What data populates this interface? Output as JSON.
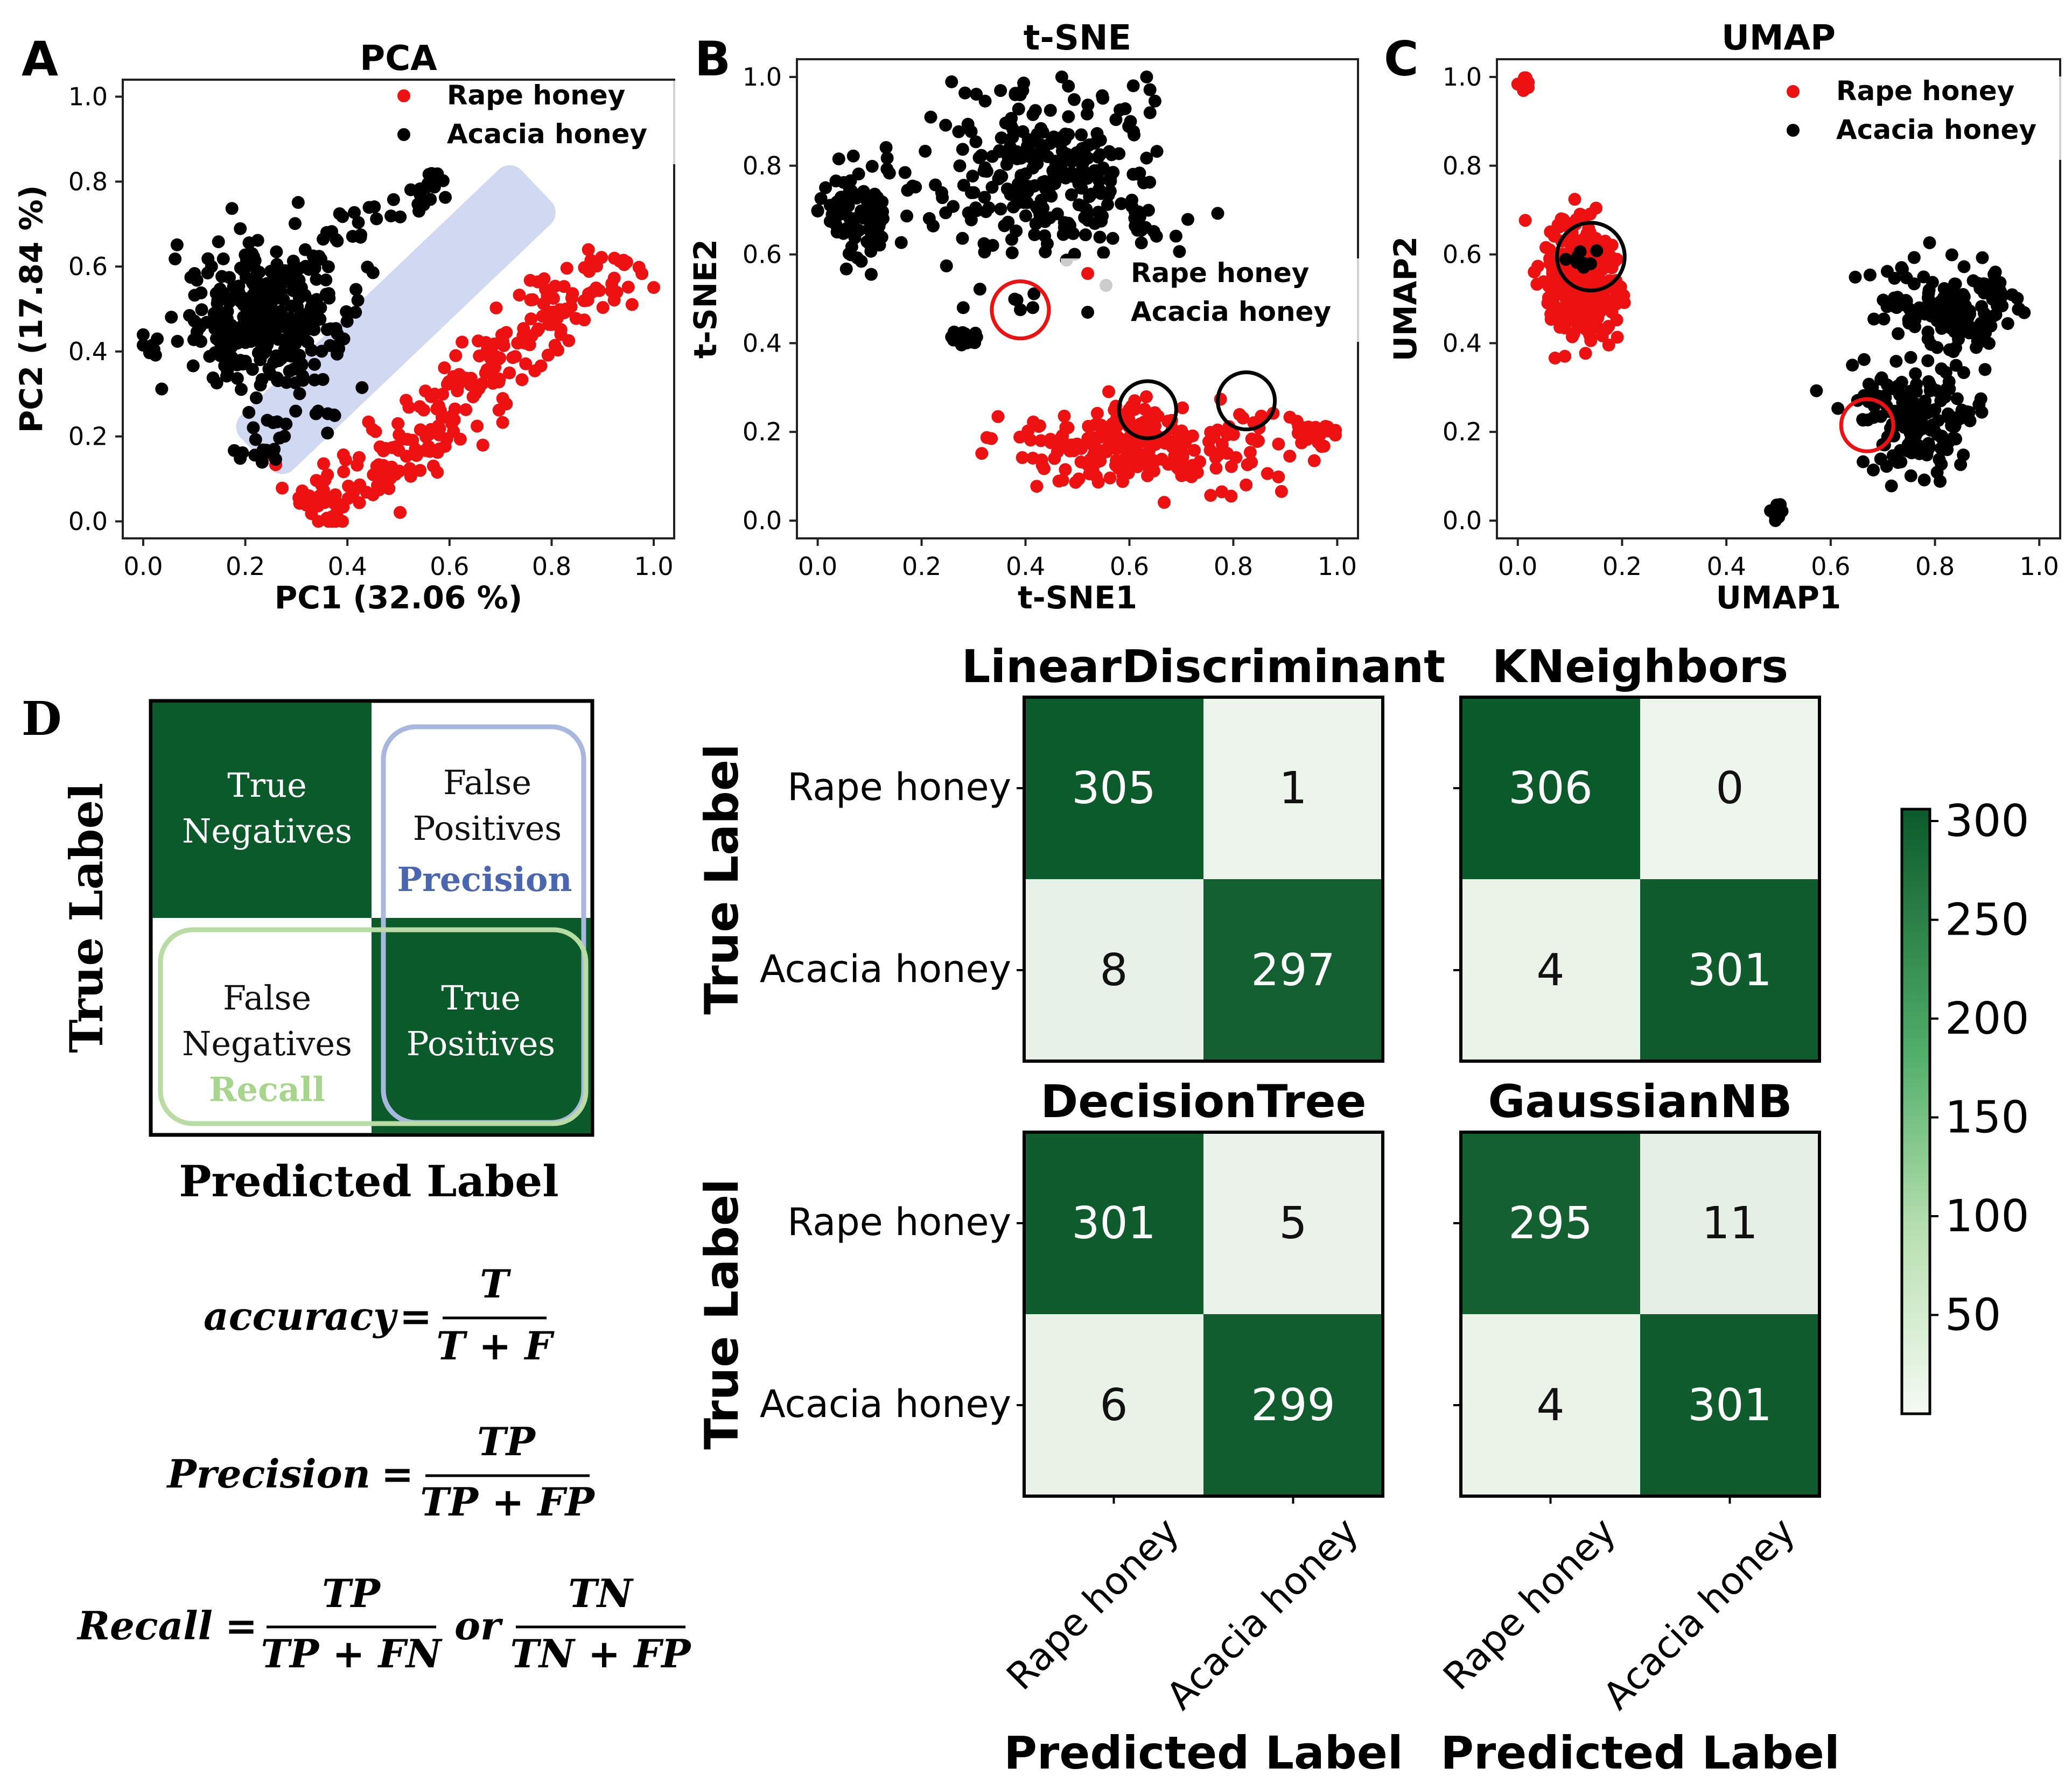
{
  "panel_letters": [
    "A",
    "B",
    "C",
    "D"
  ],
  "colors": {
    "rape": "#ee1111",
    "acacia": "#000000",
    "cm_dark": "#0b5a2a",
    "cm_light": "#eef5ec",
    "precision_box": "#a7b7dd",
    "recall_box": "#b9dca4",
    "precision_text": "#4a66b0",
    "recall_text": "#a6d68c",
    "band": "#c9d1ee"
  },
  "chart_data": [
    {
      "id": "pca",
      "type": "scatter",
      "title": "PCA",
      "xlabel": "PC1 (32.06 %)",
      "ylabel": "PC2 (17.84 %)",
      "xlim": [
        -0.04,
        1.04
      ],
      "ylim": [
        -0.04,
        1.04
      ],
      "xticks": [
        "0.0",
        "0.2",
        "0.4",
        "0.6",
        "0.8",
        "1.0"
      ],
      "yticks": [
        "0.0",
        "0.2",
        "0.4",
        "0.6",
        "0.8",
        "1.0"
      ],
      "legend": [
        "Rape honey",
        "Acacia honey"
      ],
      "legend_position": "top-right",
      "series": [
        {
          "name": "Rape honey",
          "clusters": [
            {
              "shape": "band",
              "x0": 0.32,
              "y0": 0.0,
              "x1": 0.95,
              "y1": 0.62,
              "width": 0.09,
              "n": 260,
              "seed": 11
            }
          ]
        },
        {
          "name": "Acacia honey",
          "clusters": [
            {
              "shape": "blob",
              "cx": 0.24,
              "cy": 0.47,
              "sx": 0.085,
              "sy": 0.085,
              "n": 330,
              "seed": 21
            },
            {
              "shape": "band",
              "x0": 0.25,
              "y0": 0.55,
              "x1": 0.6,
              "y1": 0.82,
              "width": 0.05,
              "n": 50,
              "seed": 22
            },
            {
              "shape": "band",
              "x0": 0.18,
              "y0": 0.15,
              "x1": 0.35,
              "y1": 0.3,
              "width": 0.05,
              "n": 25,
              "seed": 23
            }
          ]
        }
      ]
    },
    {
      "id": "tsne",
      "type": "scatter",
      "title": "t-SNE",
      "xlabel": "t-SNE1",
      "ylabel": "t-SNE2",
      "xlim": [
        -0.04,
        1.04
      ],
      "ylim": [
        -0.04,
        1.04
      ],
      "xticks": [
        "0.0",
        "0.2",
        "0.4",
        "0.6",
        "0.8",
        "1.0"
      ],
      "yticks": [
        "0.0",
        "0.2",
        "0.4",
        "0.6",
        "0.8",
        "1.0"
      ],
      "legend": [
        "Rape honey",
        "Acacia honey"
      ],
      "legend_position": "center-right",
      "series": [
        {
          "name": "Acacia honey",
          "clusters": [
            {
              "shape": "blob",
              "cx": 0.44,
              "cy": 0.77,
              "sx": 0.12,
              "sy": 0.1,
              "n": 280,
              "seed": 31
            },
            {
              "shape": "blob",
              "cx": 0.08,
              "cy": 0.7,
              "sx": 0.05,
              "sy": 0.06,
              "n": 80,
              "seed": 32
            },
            {
              "shape": "blob",
              "cx": 0.28,
              "cy": 0.41,
              "sx": 0.012,
              "sy": 0.008,
              "n": 25,
              "seed": 33
            },
            {
              "shape": "blob",
              "cx": 0.39,
              "cy": 0.48,
              "sx": 0.01,
              "sy": 0.01,
              "n": 4,
              "seed": 34
            }
          ]
        },
        {
          "name": "Rape honey",
          "clusters": [
            {
              "shape": "blob",
              "cx": 0.63,
              "cy": 0.17,
              "sx": 0.13,
              "sy": 0.045,
              "n": 250,
              "seed": 41
            },
            {
              "shape": "blob",
              "cx": 0.94,
              "cy": 0.2,
              "sx": 0.03,
              "sy": 0.012,
              "n": 25,
              "seed": 42
            }
          ]
        }
      ],
      "circles": [
        {
          "x": 0.39,
          "y": 0.475,
          "r": 0.055,
          "color": "red"
        },
        {
          "x": 0.635,
          "y": 0.25,
          "r": 0.055,
          "color": "black"
        },
        {
          "x": 0.825,
          "y": 0.27,
          "r": 0.055,
          "color": "black"
        }
      ]
    },
    {
      "id": "umap",
      "type": "scatter",
      "title": "UMAP",
      "xlabel": "UMAP1",
      "ylabel": "UMAP2",
      "xlim": [
        -0.04,
        1.04
      ],
      "ylim": [
        -0.04,
        1.04
      ],
      "xticks": [
        "0.0",
        "0.2",
        "0.4",
        "0.6",
        "0.8",
        "1.0"
      ],
      "yticks": [
        "0.0",
        "0.2",
        "0.4",
        "0.6",
        "0.8",
        "1.0"
      ],
      "legend": [
        "Rape honey",
        "Acacia honey"
      ],
      "legend_position": "top-right",
      "series": [
        {
          "name": "Rape honey",
          "clusters": [
            {
              "shape": "blob",
              "cx": 0.12,
              "cy": 0.54,
              "sx": 0.035,
              "sy": 0.07,
              "n": 300,
              "seed": 51
            },
            {
              "shape": "blob",
              "cx": 0.01,
              "cy": 0.985,
              "sx": 0.006,
              "sy": 0.008,
              "n": 15,
              "seed": 52
            }
          ]
        },
        {
          "name": "Acacia honey",
          "clusters": [
            {
              "shape": "blob",
              "cx": 0.83,
              "cy": 0.49,
              "sx": 0.07,
              "sy": 0.055,
              "n": 140,
              "seed": 61
            },
            {
              "shape": "blob",
              "cx": 0.76,
              "cy": 0.24,
              "sx": 0.06,
              "sy": 0.07,
              "n": 150,
              "seed": 62
            },
            {
              "shape": "blob",
              "cx": 0.495,
              "cy": 0.02,
              "sx": 0.005,
              "sy": 0.015,
              "n": 15,
              "seed": 63
            },
            {
              "shape": "blob",
              "cx": 0.13,
              "cy": 0.59,
              "sx": 0.015,
              "sy": 0.02,
              "n": 8,
              "seed": 64
            }
          ]
        }
      ],
      "circles": [
        {
          "x": 0.14,
          "y": 0.595,
          "r": 0.065,
          "color": "black"
        },
        {
          "x": 0.67,
          "y": 0.215,
          "r": 0.05,
          "color": "red"
        }
      ]
    },
    {
      "id": "linear-discriminant",
      "type": "heatmap",
      "title": "LinearDiscriminant",
      "row_labels": [
        "Rape honey",
        "Acacia honey"
      ],
      "col_labels": [
        "Rape honey",
        "Acacia honey"
      ],
      "values": [
        [
          305,
          1
        ],
        [
          8,
          297
        ]
      ]
    },
    {
      "id": "kneighbors",
      "type": "heatmap",
      "title": "KNeighbors",
      "row_labels": [
        "Rape honey",
        "Acacia honey"
      ],
      "col_labels": [
        "Rape honey",
        "Acacia honey"
      ],
      "values": [
        [
          306,
          0
        ],
        [
          4,
          301
        ]
      ]
    },
    {
      "id": "decision-tree",
      "type": "heatmap",
      "title": "DecisionTree",
      "row_labels": [
        "Rape honey",
        "Acacia honey"
      ],
      "col_labels": [
        "Rape honey",
        "Acacia honey"
      ],
      "values": [
        [
          301,
          5
        ],
        [
          6,
          299
        ]
      ]
    },
    {
      "id": "gaussian-nb",
      "type": "heatmap",
      "title": "GaussianNB",
      "row_labels": [
        "Rape honey",
        "Acacia honey"
      ],
      "col_labels": [
        "Rape honey",
        "Acacia honey"
      ],
      "values": [
        [
          295,
          11
        ],
        [
          4,
          301
        ]
      ]
    }
  ],
  "colorbar": {
    "min": 0,
    "max": 306,
    "ticks": [
      300,
      250,
      200,
      150,
      100,
      50
    ]
  },
  "cm_axis": {
    "ylabel": "True Label",
    "xlabel": "Predicted Label"
  },
  "schematic": {
    "ylabel": "True Label",
    "xlabel": "Predicted Label",
    "tn": [
      "True",
      "Negatives"
    ],
    "fp": [
      "False",
      "Positives"
    ],
    "fn": [
      "False",
      "Negatives"
    ],
    "tp": [
      "True",
      "Positives"
    ],
    "precision": "Precision",
    "recall": "Recall"
  },
  "formulas": {
    "accuracy": {
      "lhs": "accuracy",
      "num": "T",
      "den": "T + F"
    },
    "precision": {
      "lhs": "Precision",
      "num": "TP",
      "den": "TP + FP"
    },
    "recall": {
      "lhs": "Recall",
      "num1": "TP",
      "den1": "TP + FN",
      "or": "or",
      "num2": "TN",
      "den2": "TN + FP"
    },
    "equals": "="
  }
}
